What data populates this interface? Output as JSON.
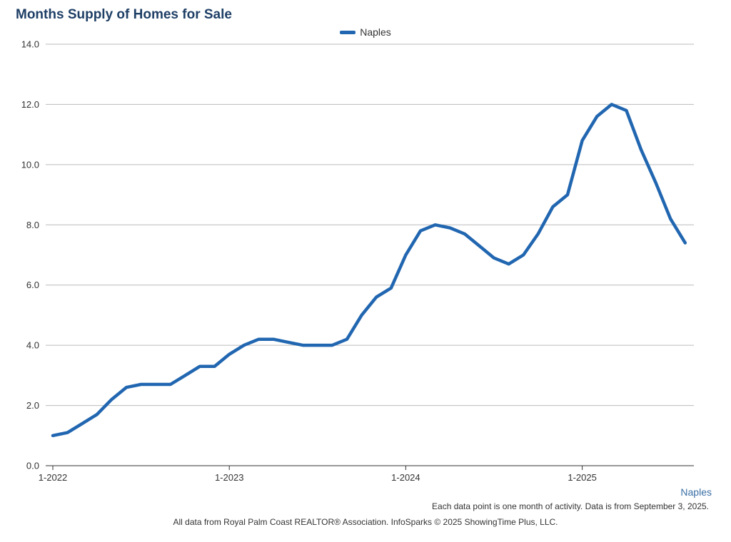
{
  "colors": {
    "series": "#2166b0",
    "title": "#1f3f66",
    "grid": "#bbbbbb",
    "axis": "#333333",
    "series_tag": "#3a6ea5"
  },
  "footer": {
    "series_tag": "Naples",
    "note": "Each data point is one month of activity. Data is from September 3, 2025.",
    "source": "All data from Royal Palm Coast REALTOR® Association. InfoSparks © 2025 ShowingTime Plus, LLC."
  },
  "chart_data": {
    "type": "line",
    "title": "Months Supply of Homes for Sale",
    "xlabel": "",
    "ylabel": "",
    "ylim": [
      0,
      14
    ],
    "yticks": [
      "0.0",
      "2.0",
      "4.0",
      "6.0",
      "8.0",
      "10.0",
      "12.0",
      "14.0"
    ],
    "xticks": [
      "1-2022",
      "1-2023",
      "1-2024",
      "1-2025"
    ],
    "grid": true,
    "legend_position": "top-center",
    "x": [
      "2022-01",
      "2022-02",
      "2022-03",
      "2022-04",
      "2022-05",
      "2022-06",
      "2022-07",
      "2022-08",
      "2022-09",
      "2022-10",
      "2022-11",
      "2022-12",
      "2023-01",
      "2023-02",
      "2023-03",
      "2023-04",
      "2023-05",
      "2023-06",
      "2023-07",
      "2023-08",
      "2023-09",
      "2023-10",
      "2023-11",
      "2023-12",
      "2024-01",
      "2024-02",
      "2024-03",
      "2024-04",
      "2024-05",
      "2024-06",
      "2024-07",
      "2024-08",
      "2024-09",
      "2024-10",
      "2024-11",
      "2024-12",
      "2025-01",
      "2025-02",
      "2025-03",
      "2025-04",
      "2025-05",
      "2025-06",
      "2025-07",
      "2025-08"
    ],
    "series": [
      {
        "name": "Naples",
        "values": [
          1.0,
          1.1,
          1.4,
          1.7,
          2.2,
          2.6,
          2.7,
          2.7,
          2.7,
          3.0,
          3.3,
          3.3,
          3.7,
          4.0,
          4.2,
          4.2,
          4.1,
          4.0,
          4.0,
          4.0,
          4.2,
          5.0,
          5.6,
          5.9,
          7.0,
          7.8,
          8.0,
          7.9,
          7.7,
          7.3,
          6.9,
          6.7,
          7.0,
          7.7,
          8.6,
          9.0,
          10.8,
          11.6,
          12.0,
          11.8,
          10.5,
          9.4,
          8.2,
          7.4
        ]
      }
    ]
  }
}
